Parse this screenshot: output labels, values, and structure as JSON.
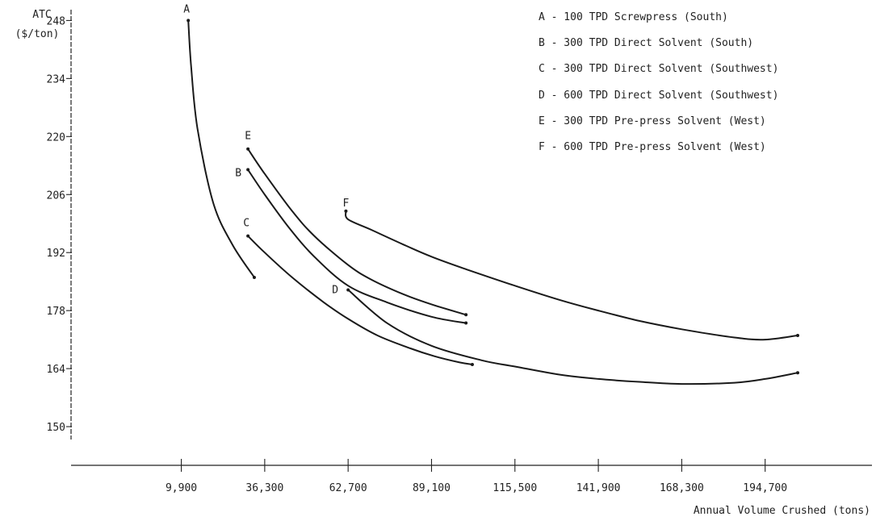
{
  "chart_data": {
    "type": "line",
    "title": "",
    "ylabel_line1": "ATC",
    "ylabel_line2": "($/ton)",
    "xlabel": "Annual Volume Crushed (tons)",
    "x_ticks": [
      9900,
      36300,
      62700,
      89100,
      115500,
      141900,
      168300,
      194700
    ],
    "x_tick_labels": [
      "9,900",
      "36,300",
      "62,700",
      "89,100",
      "115,500",
      "141,900",
      "168,300",
      "194,700"
    ],
    "y_ticks": [
      150,
      164,
      178,
      192,
      206,
      220,
      234,
      248
    ],
    "y_tick_labels": [
      "150",
      "164",
      "178",
      "192",
      "206",
      "220",
      "234",
      "248"
    ],
    "xlim": [
      -25000,
      228000
    ],
    "ylim": [
      143,
      251
    ],
    "grid": false,
    "legend_position": "top-right",
    "legend": [
      "A - 100 TPD Screwpress (South)",
      "B - 300 TPD Direct Solvent (South)",
      "C - 300 TPD Direct Solvent (Southwest)",
      "D - 600 TPD Direct Solvent (Southwest)",
      "E - 300 TPD Pre-press Solvent (West)",
      "F - 600 TPD Pre-press Solvent (West)"
    ],
    "series": [
      {
        "label": "A",
        "x": [
          12100,
          13000,
          15000,
          20000,
          26000,
          33000
        ],
        "y": [
          248,
          237,
          222,
          204,
          194,
          186
        ]
      },
      {
        "label": "B",
        "x": [
          31000,
          36300,
          44000,
          52000,
          62700,
          75000,
          89100,
          100000
        ],
        "y": [
          212,
          206,
          198,
          191,
          184,
          180,
          176.5,
          175
        ]
      },
      {
        "label": "C",
        "x": [
          31000,
          36300,
          45000,
          55000,
          62700,
          72000,
          82000,
          90000,
          98000,
          102000
        ],
        "y": [
          196,
          192,
          186,
          180,
          176,
          172,
          169,
          167,
          165.5,
          165
        ]
      },
      {
        "label": "D",
        "x": [
          62700,
          75000,
          89100,
          105000,
          115500,
          130000,
          141900,
          155000,
          168300,
          185000,
          194700,
          205000
        ],
        "y": [
          183,
          175,
          169.5,
          166,
          164.5,
          162.5,
          161.5,
          160.8,
          160.3,
          160.6,
          161.5,
          163
        ]
      },
      {
        "label": "E",
        "x": [
          31000,
          36300,
          45000,
          52000,
          62700,
          70000,
          80000,
          89100,
          100000
        ],
        "y": [
          217,
          211,
          202,
          196,
          189,
          185.5,
          182,
          179.5,
          177
        ]
      },
      {
        "label": "F",
        "x": [
          62000,
          62700,
          70000,
          80000,
          89100,
          100000,
          115500,
          130000,
          141900,
          155000,
          168300,
          185000,
          194700,
          205000
        ],
        "y": [
          202,
          200,
          197.5,
          194,
          191,
          188,
          184,
          180.5,
          178,
          175.5,
          173.5,
          171.5,
          171,
          172
        ]
      }
    ]
  }
}
